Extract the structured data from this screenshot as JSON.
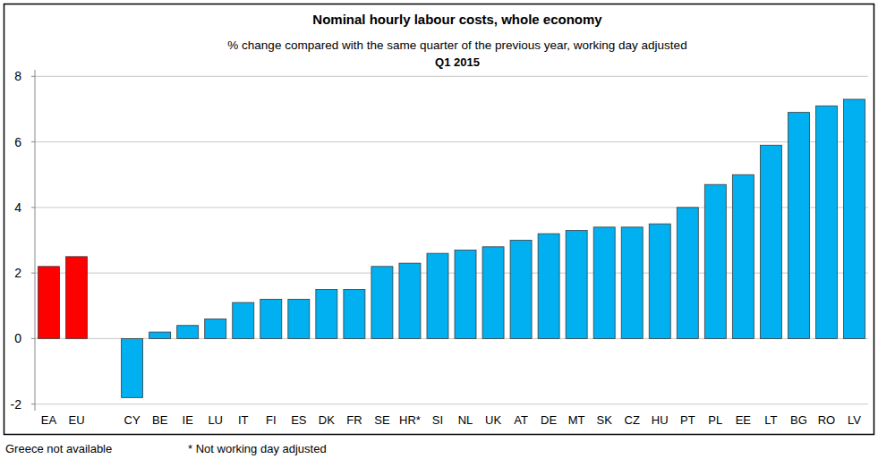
{
  "chart_data": {
    "type": "bar",
    "title": "Nominal hourly labour costs, whole economy",
    "subtitle": "% change compared with the same quarter of the previous year, working day adjusted",
    "period": "Q1 2015",
    "notes": [
      "Greece not available",
      "*  Not working day adjusted"
    ],
    "categories": [
      "EA",
      "EU",
      null,
      "CY",
      "BE",
      "IE",
      "LU",
      "IT",
      "FI",
      "ES",
      "DK",
      "FR",
      "SE",
      "HR*",
      "SI",
      "NL",
      "UK",
      "AT",
      "DE",
      "MT",
      "SK",
      "CZ",
      "HU",
      "PT",
      "PL",
      "EE",
      "LT",
      "BG",
      "RO",
      "LV"
    ],
    "values": [
      2.2,
      2.5,
      null,
      -1.8,
      0.2,
      0.4,
      0.6,
      1.1,
      1.2,
      1.2,
      1.5,
      1.5,
      2.2,
      2.3,
      2.6,
      2.7,
      2.8,
      3.0,
      3.2,
      3.3,
      3.4,
      3.4,
      3.5,
      4.0,
      4.7,
      5.0,
      5.9,
      6.9,
      7.1,
      7.3
    ],
    "colors": [
      "#ff0000",
      "#ff0000",
      null,
      "#00b0f0",
      "#00b0f0",
      "#00b0f0",
      "#00b0f0",
      "#00b0f0",
      "#00b0f0",
      "#00b0f0",
      "#00b0f0",
      "#00b0f0",
      "#00b0f0",
      "#00b0f0",
      "#00b0f0",
      "#00b0f0",
      "#00b0f0",
      "#00b0f0",
      "#00b0f0",
      "#00b0f0",
      "#00b0f0",
      "#00b0f0",
      "#00b0f0",
      "#00b0f0",
      "#00b0f0",
      "#00b0f0",
      "#00b0f0",
      "#00b0f0",
      "#00b0f0",
      "#00b0f0"
    ],
    "ylim": [
      -2.2,
      8.2
    ],
    "yticks": [
      -2,
      0,
      2,
      4,
      6,
      8
    ],
    "grid": true
  }
}
